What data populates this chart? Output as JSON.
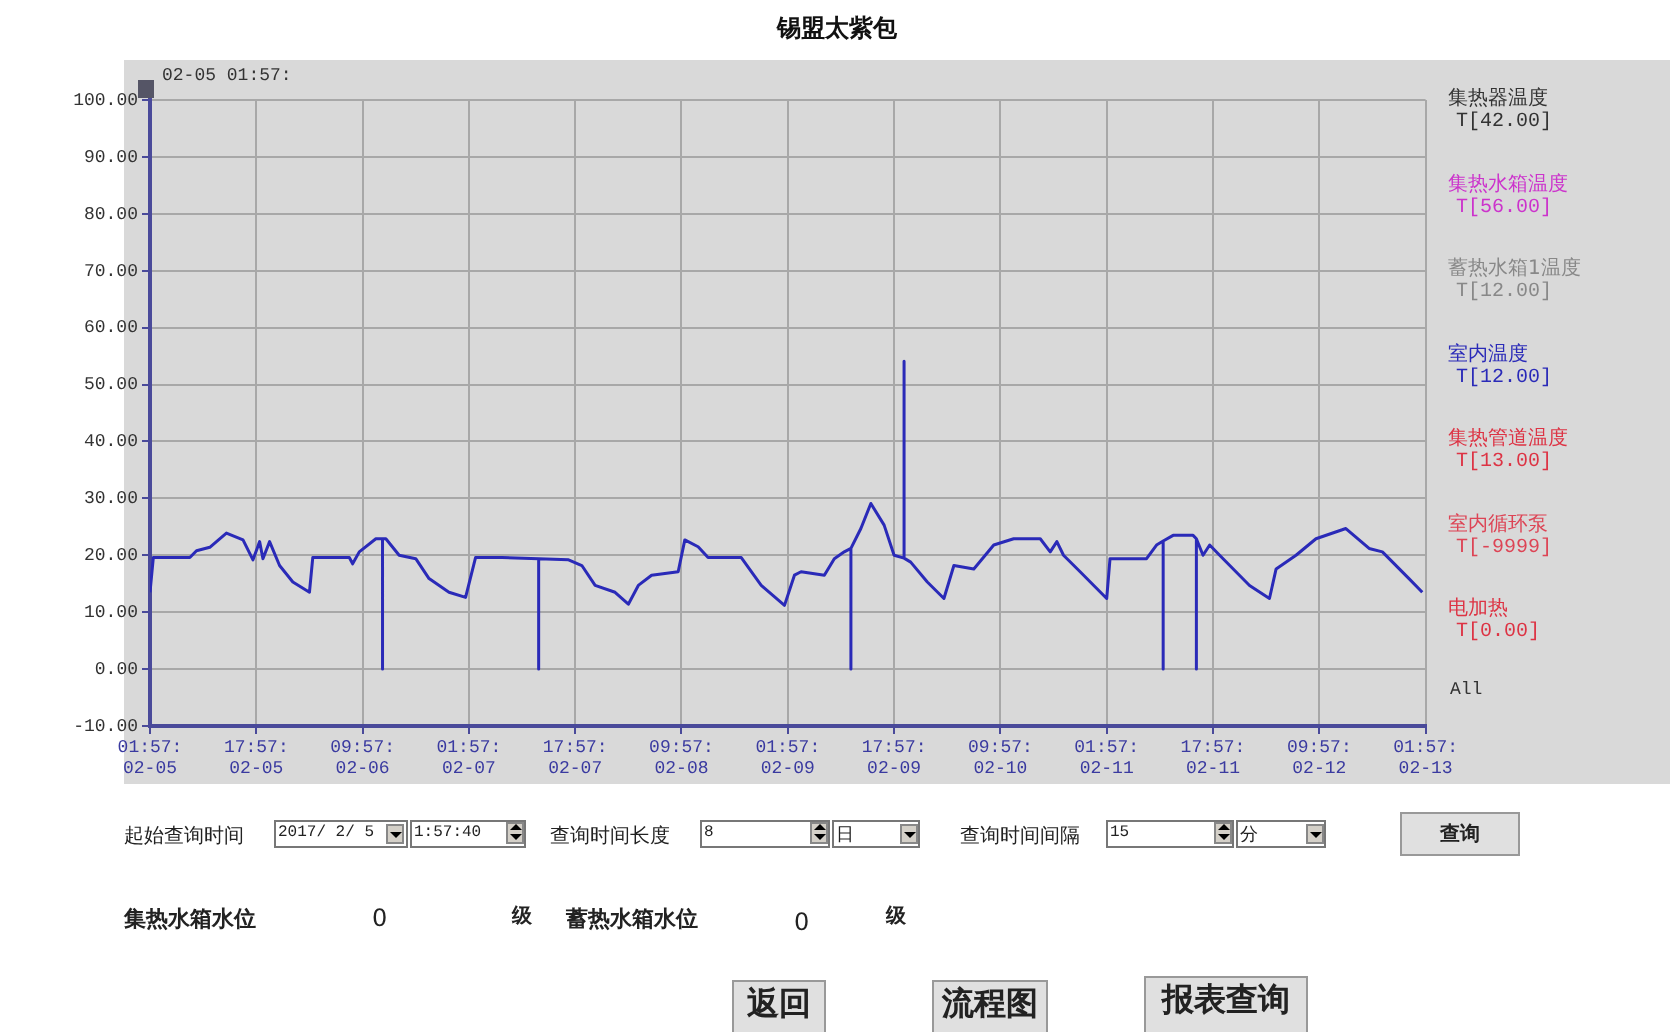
{
  "chart_data": {
    "type": "line",
    "title": "锡盟太紫包",
    "series": [
      {
        "name": "集热器温度",
        "color": "#333333"
      },
      {
        "name": "集热水箱温度",
        "color": "#cc33cc"
      },
      {
        "name": "蓄热水箱1温度",
        "color": "#888888"
      },
      {
        "name": "室内温度",
        "color": "#2a2ab8",
        "x": [
          "2017-02-05T01:57",
          "2017-02-05T02:27",
          "2017-02-05T07:57",
          "2017-02-05T08:57",
          "2017-02-05T10:57",
          "2017-02-05T13:27",
          "2017-02-05T15:57",
          "2017-02-05T17:27",
          "2017-02-05T18:27",
          "2017-02-05T18:57",
          "2017-02-05T19:57",
          "2017-02-05T21:27",
          "2017-02-05T23:27",
          "2017-02-06T01:57",
          "2017-02-06T02:27",
          "2017-02-06T07:57",
          "2017-02-06T08:27",
          "2017-02-06T09:27",
          "2017-02-06T11:57",
          "2017-02-06T12:57",
          "2017-02-06T12:57",
          "2017-02-06T12:57",
          "2017-02-06T13:27",
          "2017-02-06T15:27",
          "2017-02-06T17:57",
          "2017-02-06T19:57",
          "2017-02-06T22:57",
          "2017-02-07T01:27",
          "2017-02-07T02:57",
          "2017-02-07T06:57",
          "2017-02-07T12:27",
          "2017-02-07T12:27",
          "2017-02-07T12:27",
          "2017-02-07T16:57",
          "2017-02-07T18:57",
          "2017-02-07T20:57",
          "2017-02-07T23:57",
          "2017-02-08T01:57",
          "2017-02-08T03:27",
          "2017-02-08T05:27",
          "2017-02-08T09:27",
          "2017-02-08T10:27",
          "2017-02-08T12:27",
          "2017-02-08T13:57",
          "2017-02-08T18:57",
          "2017-02-08T21:57",
          "2017-02-09T01:27",
          "2017-02-09T02:57",
          "2017-02-09T03:57",
          "2017-02-09T07:27",
          "2017-02-09T08:57",
          "2017-02-09T10:27",
          "2017-02-09T11:27",
          "2017-02-09T11:27",
          "2017-02-09T11:27",
          "2017-02-09T12:57",
          "2017-02-09T14:27",
          "2017-02-09T16:27",
          "2017-02-09T17:57",
          "2017-02-09T19:27",
          "2017-02-09T19:27",
          "2017-02-09T19:27",
          "2017-02-09T20:27",
          "2017-02-09T22:57",
          "2017-02-10T01:27",
          "2017-02-10T02:57",
          "2017-02-10T05:57",
          "2017-02-10T08:57",
          "2017-02-10T11:57",
          "2017-02-10T15:57",
          "2017-02-10T17:27",
          "2017-02-10T18:27",
          "2017-02-10T19:27",
          "2017-02-10T21:57",
          "2017-02-11T01:57",
          "2017-02-11T02:27",
          "2017-02-11T07:57",
          "2017-02-11T09:27",
          "2017-02-11T10:27",
          "2017-02-11T10:27",
          "2017-02-11T10:27",
          "2017-02-11T11:57",
          "2017-02-11T14:57",
          "2017-02-11T15:27",
          "2017-02-11T15:27",
          "2017-02-11T15:27",
          "2017-02-11T16:27",
          "2017-02-11T17:27",
          "2017-02-11T18:57",
          "2017-02-11T23:27",
          "2017-02-12T02:27",
          "2017-02-12T03:27",
          "2017-02-12T06:27",
          "2017-02-12T09:27",
          "2017-02-12T13:57",
          "2017-02-12T17:27",
          "2017-02-12T19:27",
          "2017-02-12T23:27",
          "2017-02-13T01:27"
        ],
        "values": [
          13.5,
          19.6,
          19.6,
          20.8,
          21.4,
          23.9,
          22.7,
          19.2,
          22.4,
          19.4,
          22.4,
          18.2,
          15.3,
          13.5,
          19.6,
          19.6,
          18.5,
          20.6,
          22.9,
          22.9,
          0,
          22.9,
          22.9,
          20,
          19.4,
          15.9,
          13.5,
          12.6,
          19.6,
          19.6,
          19.4,
          0,
          19.4,
          19.2,
          18.2,
          14.7,
          13.5,
          11.4,
          14.7,
          16.5,
          17.1,
          22.7,
          21.5,
          19.6,
          19.6,
          14.7,
          11.2,
          16.5,
          17.1,
          16.5,
          19.4,
          20.6,
          21.2,
          0,
          21.2,
          24.7,
          29.1,
          25.3,
          20,
          19.5,
          54.1,
          19.5,
          18.8,
          15.3,
          12.4,
          18.2,
          17.6,
          21.8,
          22.9,
          22.9,
          20.6,
          22.4,
          20,
          17.1,
          12.4,
          19.4,
          19.4,
          21.8,
          22.5,
          0,
          22.5,
          23.5,
          23.5,
          22.9,
          0,
          22.9,
          20,
          21.8,
          20,
          14.7,
          12.4,
          17.6,
          20,
          22.9,
          24.7,
          21.2,
          20.6,
          15.9,
          13.5
        ]
      },
      {
        "name": "集热管道温度",
        "color": "#dd3344"
      },
      {
        "name": "室内循环泵",
        "color": "#dd4455"
      },
      {
        "name": "电加热",
        "color": "#dd3344"
      }
    ],
    "xlim": [
      "2017-02-05T01:57",
      "2017-02-13T01:57"
    ],
    "xticks": [
      {
        "value": "2017-02-05T01:57",
        "label": "01:57:\n02-05"
      },
      {
        "value": "2017-02-05T17:57",
        "label": "17:57:\n02-05"
      },
      {
        "value": "2017-02-06T09:57",
        "label": "09:57:\n02-06"
      },
      {
        "value": "2017-02-07T01:57",
        "label": "01:57:\n02-07"
      },
      {
        "value": "2017-02-07T17:57",
        "label": "17:57:\n02-07"
      },
      {
        "value": "2017-02-08T09:57",
        "label": "09:57:\n02-08"
      },
      {
        "value": "2017-02-09T01:57",
        "label": "01:57:\n02-09"
      },
      {
        "value": "2017-02-09T17:57",
        "label": "17:57:\n02-09"
      },
      {
        "value": "2017-02-10T09:57",
        "label": "09:57:\n02-10"
      },
      {
        "value": "2017-02-11T01:57",
        "label": "01:57:\n02-11"
      },
      {
        "value": "2017-02-11T17:57",
        "label": "17:57:\n02-11"
      },
      {
        "value": "2017-02-12T09:57",
        "label": "09:57:\n02-12"
      },
      {
        "value": "2017-02-13T01:57",
        "label": "01:57:\n02-13"
      }
    ],
    "ylim": [
      -10,
      100
    ],
    "yticks": [
      {
        "value": -10,
        "label": "-10.00"
      },
      {
        "value": 0,
        "label": "0.00"
      },
      {
        "value": 10,
        "label": "10.00"
      },
      {
        "value": 20,
        "label": "20.00"
      },
      {
        "value": 30,
        "label": "30.00"
      },
      {
        "value": 40,
        "label": "40.00"
      },
      {
        "value": 50,
        "label": "50.00"
      },
      {
        "value": 60,
        "label": "60.00"
      },
      {
        "value": 70,
        "label": "70.00"
      },
      {
        "value": 80,
        "label": "80.00"
      },
      {
        "value": 90,
        "label": "90.00"
      },
      {
        "value": 100,
        "label": "100.00"
      }
    ],
    "grid": true,
    "legend": "right",
    "annotations": [
      "02-05 01:57:",
      "T[42.00]",
      "T[56.00]",
      "T[12.00]",
      "T[12.00]",
      "T[13.00]",
      "T[-9999]",
      "T[0.00]",
      "All",
      "起始查询时间",
      "2017/ 2/ 5",
      "1:57:40",
      "查询时间长度",
      "8",
      "日",
      "查询时间间隔",
      "15",
      "分",
      "查询",
      "集热水箱水位",
      "0",
      "级",
      "蓄热水箱水位",
      "0",
      "级",
      "返回",
      "流程图",
      "报表查询"
    ]
  }
}
